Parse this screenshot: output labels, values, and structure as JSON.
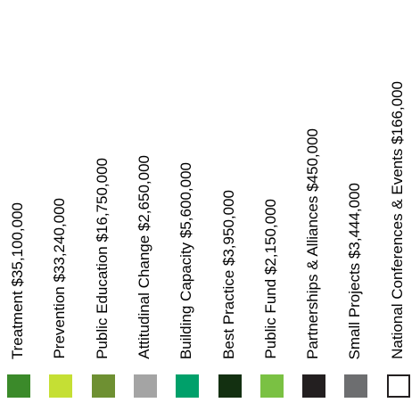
{
  "chart_data": {
    "type": "legend",
    "entries": [
      {
        "label": "Treatment $35,100,000",
        "value": 35100000,
        "color": "#3b8a2a"
      },
      {
        "label": "Prevention $33,240,000",
        "value": 33240000,
        "color": "#c5df34"
      },
      {
        "label": "Public Education $16,750,000",
        "value": 16750000,
        "color": "#6e9032"
      },
      {
        "label": "Attitudinal Change $2,650,000",
        "value": 2650000,
        "color": "#a4a4a4"
      },
      {
        "label": "Building Capacity $5,600,000",
        "value": 5600000,
        "color": "#00a06a"
      },
      {
        "label": "Best Practice $3,950,000",
        "value": 3950000,
        "color": "#133011"
      },
      {
        "label": "Public Fund $2,150,000",
        "value": 2150000,
        "color": "#7ac143"
      },
      {
        "label": "Partnerships & Alliances $450,000",
        "value": 450000,
        "color": "#231f20"
      },
      {
        "label": "Small Projects $3,444,000",
        "value": 3444000,
        "color": "#6d6e70"
      },
      {
        "label": "National Conferences & Events $166,000",
        "value": 166000,
        "color": "#ffffff",
        "border": "#231f20"
      }
    ]
  }
}
